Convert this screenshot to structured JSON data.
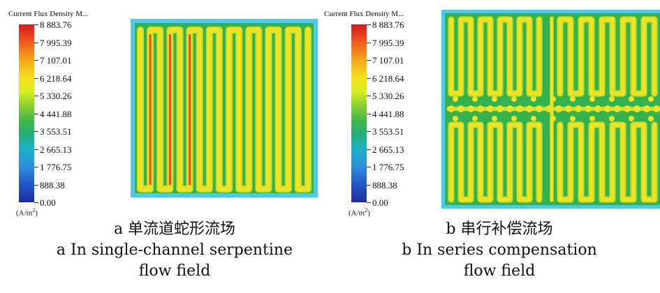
{
  "legend": {
    "title": "Current Flux Density M...",
    "ticks": [
      "8 883.76",
      "7 995.39",
      "7 107.01",
      "6 218.64",
      "5 330.26",
      "4 441.88",
      "3 553.51",
      "2 665.13",
      "1 776.75",
      "888.38",
      "0.00"
    ],
    "unit_base": "(A/m",
    "unit_exp": "2",
    "unit_close": ")"
  },
  "panel_a": {
    "caption_cn": "a  单流道蛇形流场",
    "caption_en_line1": "a  In single-channel serpentine",
    "caption_en_line2": "flow field"
  },
  "panel_b": {
    "caption_cn": "b  串行补偿流场",
    "caption_en_line1": "b In series compensation",
    "caption_en_line2": "flow field"
  },
  "colors": {
    "background_field": "#4ec9e6",
    "land": "#33b24d",
    "channel_high": "#f0e323",
    "channel_peak": "#f04b1a",
    "channel_edge": "#c9dd2b"
  }
}
